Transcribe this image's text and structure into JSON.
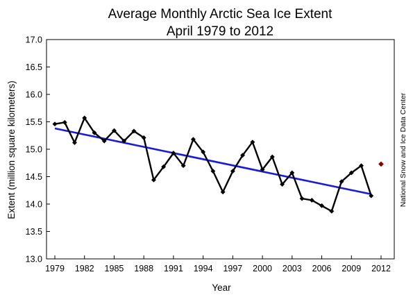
{
  "chart_data": {
    "type": "line",
    "title": "Average Monthly Arctic Sea Ice Extent",
    "subtitle": "April 1979 to 2012",
    "xlabel": "Year",
    "ylabel": "Extent (million square kilometers)",
    "source": "National Snow and Ice Data Center",
    "xlim": [
      1979,
      2012
    ],
    "ylim": [
      13.0,
      17.0
    ],
    "x_ticks": [
      1979,
      1982,
      1985,
      1988,
      1991,
      1994,
      1997,
      2000,
      2003,
      2006,
      2009,
      2012
    ],
    "y_ticks": [
      "13.0",
      "13.5",
      "14.0",
      "14.5",
      "15.0",
      "15.5",
      "16.0",
      "16.5",
      "17.0"
    ],
    "grid": false,
    "colors": {
      "series": "#000000",
      "trend": "#1a1adc",
      "highlight": "#8b0000"
    },
    "series": [
      {
        "x": [
          1979,
          1980,
          1981,
          1982,
          1983,
          1984,
          1985,
          1986,
          1987,
          1988,
          1989,
          1990,
          1991,
          1992,
          1993,
          1994,
          1995,
          1996,
          1997,
          1998,
          1999,
          2000,
          2001,
          2002,
          2003,
          2004,
          2005,
          2006,
          2007,
          2008,
          2009,
          2010,
          2011,
          2012
        ],
        "values": [
          15.46,
          15.49,
          15.12,
          15.57,
          15.3,
          15.15,
          15.34,
          15.15,
          15.33,
          15.21,
          14.44,
          14.68,
          14.93,
          14.7,
          15.18,
          14.95,
          14.6,
          14.22,
          14.6,
          14.89,
          15.13,
          14.63,
          14.86,
          14.36,
          14.57,
          14.1,
          14.07,
          13.97,
          13.87,
          14.41,
          14.57,
          14.7,
          14.15,
          14.73
        ]
      }
    ],
    "trend": {
      "x": [
        1979,
        2011
      ],
      "values": [
        15.38,
        14.18
      ]
    },
    "highlight_point": {
      "x": 2012,
      "value": 14.73
    }
  }
}
